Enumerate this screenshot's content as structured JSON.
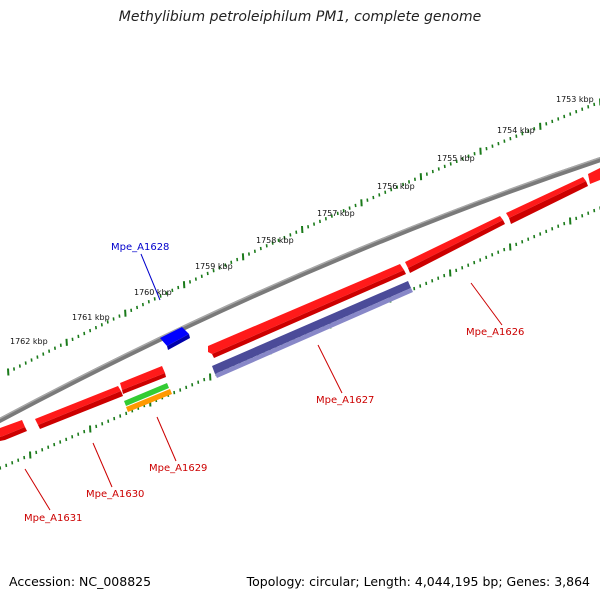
{
  "title": "Methylibium petroleiphilum PM1, complete genome",
  "footer": {
    "accession": "Accession: NC_008825",
    "summary": "Topology: circular; Length: 4,044,195 bp; Genes: 3,864"
  },
  "colors": {
    "forward_gene": "#ff0000",
    "reverse_gene": "#ff0000",
    "highlight_purple": "#4b4b99",
    "blue_gene": "#0000ff",
    "green_feature": "#33cc33",
    "orange_feature": "#ff9900",
    "tick": "#1a7a1a",
    "backbone": "#808080",
    "label_red": "#cc0000",
    "label_blue": "#0000cc"
  },
  "ticks": [
    {
      "label": "1753 kbp"
    },
    {
      "label": "1754 kbp"
    },
    {
      "label": "1755 kbp"
    },
    {
      "label": "1756 kbp"
    },
    {
      "label": "1757 kbp"
    },
    {
      "label": "1758 kbp"
    },
    {
      "label": "1759 kbp"
    },
    {
      "label": "1760 kbp"
    },
    {
      "label": "1761 kbp"
    },
    {
      "label": "1762 kbp"
    }
  ],
  "genes": [
    {
      "name": "Mpe_A1626",
      "color": "#cc0000"
    },
    {
      "name": "Mpe_A1627",
      "color": "#cc0000"
    },
    {
      "name": "Mpe_A1628",
      "color": "#0000cc"
    },
    {
      "name": "Mpe_A1629",
      "color": "#cc0000"
    },
    {
      "name": "Mpe_A1630",
      "color": "#cc0000"
    },
    {
      "name": "Mpe_A1631",
      "color": "#cc0000"
    }
  ]
}
